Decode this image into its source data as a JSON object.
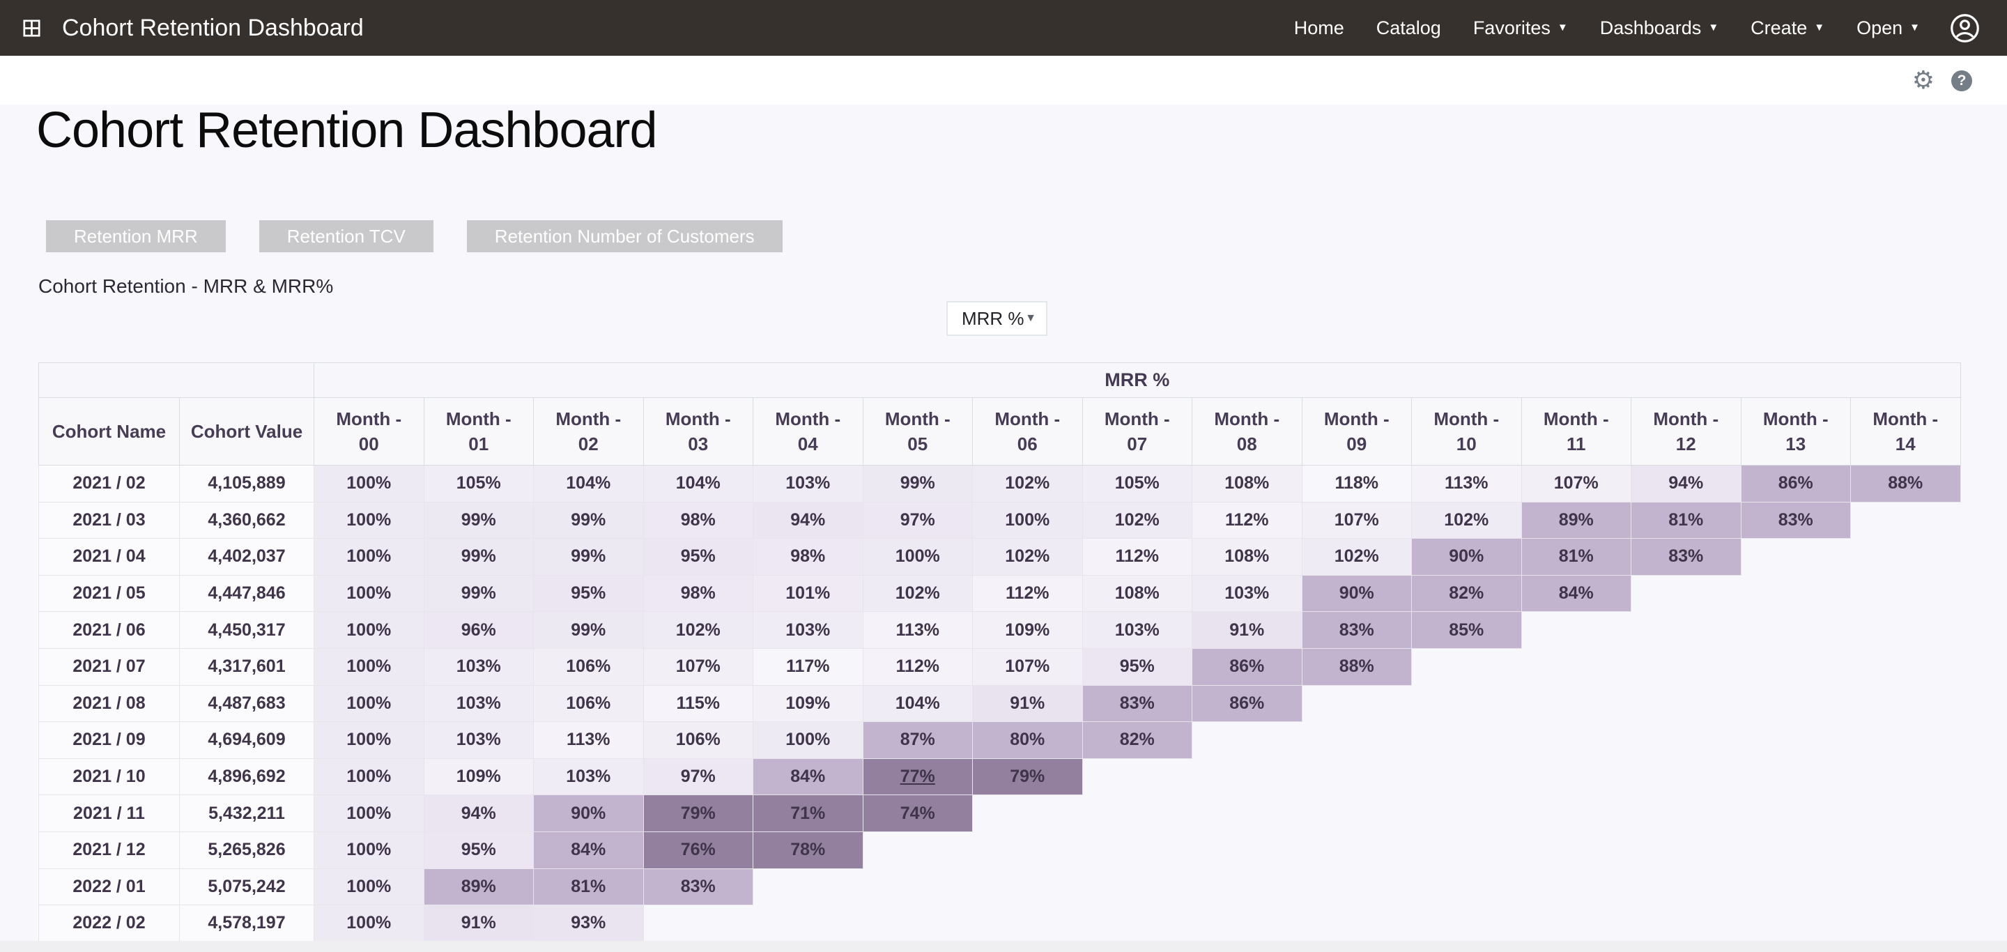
{
  "topbar": {
    "title": "Cohort Retention Dashboard",
    "nav": [
      {
        "label": "Home",
        "dropdown": false
      },
      {
        "label": "Catalog",
        "dropdown": false
      },
      {
        "label": "Favorites",
        "dropdown": true
      },
      {
        "label": "Dashboards",
        "dropdown": true
      },
      {
        "label": "Create",
        "dropdown": true
      },
      {
        "label": "Open",
        "dropdown": true
      }
    ]
  },
  "page": {
    "title": "Cohort Retention Dashboard"
  },
  "filter_buttons": [
    "Retention MRR",
    "Retention TCV",
    "Retention Number of Customers"
  ],
  "tile": {
    "title": "Cohort Retention - MRR & MRR%"
  },
  "measure_dropdown": {
    "value": "MRR %"
  },
  "icons": {
    "gear": "⚙",
    "help": "?",
    "chevron_down": "▼"
  },
  "table": {
    "banner_label": "MRR %",
    "cohort_name_header": "Cohort Name",
    "cohort_value_header": "Cohort Value",
    "month_prefix": "Month -",
    "months": [
      "00",
      "01",
      "02",
      "03",
      "04",
      "05",
      "06",
      "07",
      "08",
      "09",
      "10",
      "11",
      "12",
      "13",
      "14"
    ],
    "unit": "%",
    "heat_colors": {
      "dark": "#92809e",
      "dark_max": 79,
      "medium": "#c2b4ce",
      "medium_max": 90,
      "light_low": "#e9e3f0",
      "light_high": "#f9f8fc",
      "light_min_value": 91,
      "light_max_value": 120
    },
    "underlined_cell": {
      "row": 8,
      "month": 5
    },
    "rows": [
      {
        "name": "2021 / 02",
        "value": "4,105,889",
        "cells": [
          100,
          105,
          104,
          104,
          103,
          99,
          102,
          105,
          108,
          118,
          113,
          107,
          94,
          86,
          88
        ]
      },
      {
        "name": "2021 / 03",
        "value": "4,360,662",
        "cells": [
          100,
          99,
          99,
          98,
          94,
          97,
          100,
          102,
          112,
          107,
          102,
          89,
          81,
          83
        ]
      },
      {
        "name": "2021 / 04",
        "value": "4,402,037",
        "cells": [
          100,
          99,
          99,
          95,
          98,
          100,
          102,
          112,
          108,
          102,
          90,
          81,
          83
        ]
      },
      {
        "name": "2021 / 05",
        "value": "4,447,846",
        "cells": [
          100,
          99,
          95,
          98,
          101,
          102,
          112,
          108,
          103,
          90,
          82,
          84
        ]
      },
      {
        "name": "2021 / 06",
        "value": "4,450,317",
        "cells": [
          100,
          96,
          99,
          102,
          103,
          113,
          109,
          103,
          91,
          83,
          85
        ]
      },
      {
        "name": "2021 / 07",
        "value": "4,317,601",
        "cells": [
          100,
          103,
          106,
          107,
          117,
          112,
          107,
          95,
          86,
          88
        ]
      },
      {
        "name": "2021 / 08",
        "value": "4,487,683",
        "cells": [
          100,
          103,
          106,
          115,
          109,
          104,
          91,
          83,
          86
        ]
      },
      {
        "name": "2021 / 09",
        "value": "4,694,609",
        "cells": [
          100,
          103,
          113,
          106,
          100,
          87,
          80,
          82
        ]
      },
      {
        "name": "2021 / 10",
        "value": "4,896,692",
        "cells": [
          100,
          109,
          103,
          97,
          84,
          77,
          79
        ]
      },
      {
        "name": "2021 / 11",
        "value": "5,432,211",
        "cells": [
          100,
          94,
          90,
          79,
          71,
          74
        ]
      },
      {
        "name": "2021 / 12",
        "value": "5,265,826",
        "cells": [
          100,
          95,
          84,
          76,
          78
        ]
      },
      {
        "name": "2022 / 01",
        "value": "5,075,242",
        "cells": [
          100,
          89,
          81,
          83
        ]
      },
      {
        "name": "2022 / 02",
        "value": "4,578,197",
        "cells": [
          100,
          91,
          93
        ]
      }
    ]
  }
}
